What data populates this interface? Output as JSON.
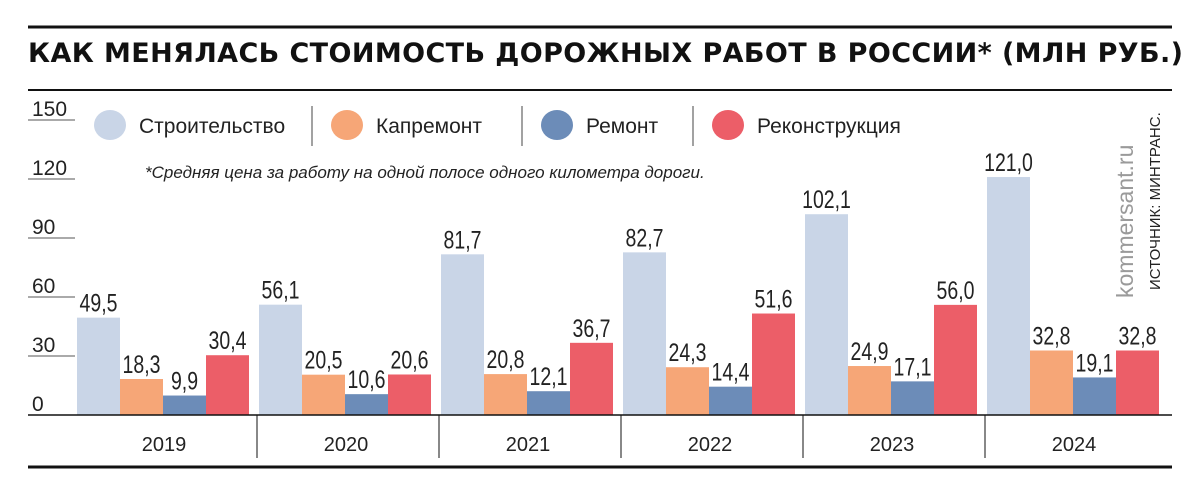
{
  "chart_data": {
    "type": "bar",
    "title": "КАК МЕНЯЛАСЬ СТОИМОСТЬ ДОРОЖНЫХ РАБОТ В РОССИИ* (МЛН РУБ.)",
    "note": "*Средняя цена за работу на одной полосе одного километра дороги.",
    "categories": [
      "2019",
      "2020",
      "2021",
      "2022",
      "2023",
      "2024"
    ],
    "ylim": [
      0,
      150
    ],
    "yticks": [
      "0",
      "30",
      "60",
      "90",
      "120",
      "150"
    ],
    "grid": false,
    "legend_position": "top",
    "series": [
      {
        "name": "Строительство",
        "color": "#c9d5e7",
        "values": [
          49.5,
          56.1,
          81.7,
          82.7,
          102.1,
          121.0
        ],
        "labels": [
          "49,5",
          "56,1",
          "81,7",
          "82,7",
          "102,1",
          "121,0"
        ]
      },
      {
        "name": "Капремонт",
        "color": "#f6a677",
        "values": [
          18.3,
          20.5,
          20.8,
          24.3,
          24.9,
          32.8
        ],
        "labels": [
          "18,3",
          "20,5",
          "20,8",
          "24,3",
          "24,9",
          "32,8"
        ]
      },
      {
        "name": "Ремонт",
        "color": "#6c8cb8",
        "values": [
          9.9,
          10.6,
          12.1,
          14.4,
          17.1,
          19.1
        ],
        "labels": [
          "9,9",
          "10,6",
          "12,1",
          "14,4",
          "17,1",
          "19,1"
        ]
      },
      {
        "name": "Реконструкция",
        "color": "#ec5e68",
        "values": [
          30.4,
          20.6,
          36.7,
          51.6,
          56.0,
          32.8
        ],
        "labels": [
          "30,4",
          "20,6",
          "36,7",
          "51,6",
          "56,0",
          "32,8"
        ]
      }
    ]
  },
  "site": "kommersant.ru",
  "source": "ИСТОЧНИК: МИНТРАНС."
}
